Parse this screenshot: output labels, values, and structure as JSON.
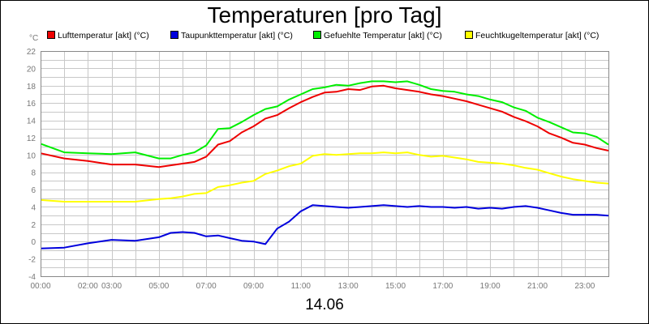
{
  "chart_data": {
    "type": "line",
    "title": "Temperaturen [pro Tag]",
    "ylabel": "°C",
    "xlabel": "14.06",
    "ylim": [
      -4,
      22
    ],
    "yticks": [
      -4,
      -2,
      0,
      2,
      4,
      6,
      8,
      10,
      12,
      14,
      16,
      18,
      20,
      22
    ],
    "xlim": [
      0,
      24
    ],
    "xticks": [
      {
        "hour": 0,
        "label": "00:00"
      },
      {
        "hour": 2,
        "label": "02:00"
      },
      {
        "hour": 3,
        "label": "03:00"
      },
      {
        "hour": 5,
        "label": "05:00"
      },
      {
        "hour": 7,
        "label": "07:00"
      },
      {
        "hour": 9,
        "label": "09:00"
      },
      {
        "hour": 11,
        "label": "11:00"
      },
      {
        "hour": 13,
        "label": "13:00"
      },
      {
        "hour": 15,
        "label": "15:00"
      },
      {
        "hour": 17,
        "label": "17:00"
      },
      {
        "hour": 19,
        "label": "19:00"
      },
      {
        "hour": 21,
        "label": "21:00"
      },
      {
        "hour": 23,
        "label": "23:00"
      }
    ],
    "grid": true,
    "legend_position": "top",
    "x": [
      0,
      1,
      2,
      3,
      4,
      5,
      5.5,
      6,
      6.5,
      7,
      7.5,
      8,
      8.5,
      9,
      9.5,
      10,
      10.5,
      11,
      11.5,
      12,
      12.5,
      13,
      13.5,
      14,
      14.5,
      15,
      15.5,
      16,
      16.5,
      17,
      17.5,
      18,
      18.5,
      19,
      19.5,
      20,
      20.5,
      21,
      21.5,
      22,
      22.5,
      23,
      23.5,
      24
    ],
    "series": [
      {
        "name": "Lufttemperatur [akt] (°C)",
        "color": "#ee0000",
        "values": [
          10.2,
          9.6,
          9.3,
          8.9,
          8.9,
          8.6,
          8.8,
          9.0,
          9.2,
          9.8,
          11.2,
          11.6,
          12.6,
          13.3,
          14.2,
          14.6,
          15.4,
          16.1,
          16.7,
          17.2,
          17.3,
          17.6,
          17.5,
          17.9,
          18.0,
          17.7,
          17.5,
          17.3,
          17.0,
          16.8,
          16.5,
          16.2,
          15.8,
          15.4,
          15.0,
          14.4,
          13.9,
          13.3,
          12.5,
          12.0,
          11.4,
          11.2,
          10.8,
          10.5
        ]
      },
      {
        "name": "Taupunkttemperatur [akt] (°C)",
        "color": "#0000dd",
        "values": [
          -0.8,
          -0.7,
          -0.2,
          0.2,
          0.1,
          0.5,
          1.0,
          1.1,
          1.0,
          0.6,
          0.7,
          0.4,
          0.1,
          0.0,
          -0.3,
          1.5,
          2.3,
          3.5,
          4.2,
          4.1,
          4.0,
          3.9,
          4.0,
          4.1,
          4.2,
          4.1,
          4.0,
          4.1,
          4.0,
          4.0,
          3.9,
          4.0,
          3.8,
          3.9,
          3.8,
          4.0,
          4.1,
          3.9,
          3.6,
          3.3,
          3.1,
          3.1,
          3.1,
          3.0
        ]
      },
      {
        "name": "Gefuehlte Temperatur [akt] (°C)",
        "color": "#00ee00",
        "values": [
          11.3,
          10.3,
          10.2,
          10.1,
          10.3,
          9.6,
          9.6,
          10.0,
          10.3,
          11.1,
          13.0,
          13.1,
          13.8,
          14.6,
          15.3,
          15.6,
          16.4,
          17.0,
          17.6,
          17.8,
          18.1,
          18.0,
          18.3,
          18.5,
          18.5,
          18.4,
          18.5,
          18.1,
          17.6,
          17.4,
          17.3,
          17.0,
          16.8,
          16.4,
          16.1,
          15.5,
          15.1,
          14.3,
          13.8,
          13.2,
          12.6,
          12.5,
          12.1,
          11.2
        ]
      },
      {
        "name": "Feuchtkugeltemperatur [akt] (°C)",
        "color": "#ffff00",
        "values": [
          4.8,
          4.6,
          4.6,
          4.6,
          4.6,
          4.9,
          5.0,
          5.2,
          5.5,
          5.6,
          6.3,
          6.5,
          6.8,
          7.0,
          7.8,
          8.2,
          8.7,
          9.0,
          9.9,
          10.1,
          10.0,
          10.1,
          10.2,
          10.2,
          10.3,
          10.2,
          10.3,
          10.0,
          9.8,
          9.9,
          9.7,
          9.5,
          9.2,
          9.1,
          9.0,
          8.8,
          8.5,
          8.3,
          7.9,
          7.5,
          7.2,
          7.0,
          6.8,
          6.7
        ]
      }
    ]
  },
  "footer": {
    "date": "14.06"
  }
}
